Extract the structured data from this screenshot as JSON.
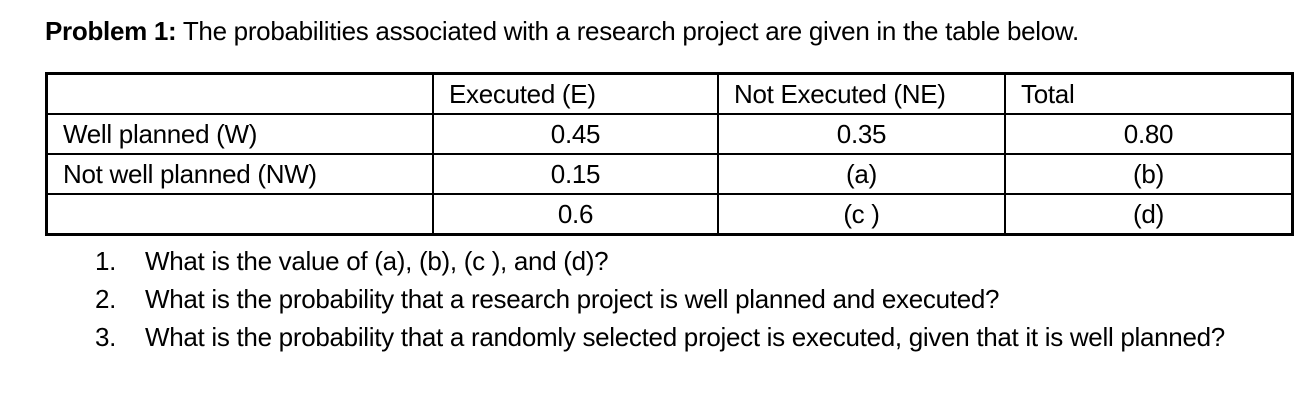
{
  "title": {
    "bold": "Problem 1:",
    "rest": " The probabilities associated with a research project are given in the table below."
  },
  "table": {
    "headers": {
      "blank": "",
      "executed": "Executed (E)",
      "not_executed": "Not Executed (NE)",
      "total": "Total"
    },
    "rows": [
      {
        "label": "Well planned (W)",
        "executed": "0.45",
        "not_executed": "0.35",
        "total": "0.80"
      },
      {
        "label": "Not well planned (NW)",
        "executed": "0.15",
        "not_executed": "(a)",
        "total": "(b)"
      },
      {
        "label": "",
        "executed": "0.6",
        "not_executed": "(c )",
        "total": "(d)"
      }
    ]
  },
  "questions": [
    {
      "number": "1.",
      "text": "What is the value of (a), (b), (c ), and (d)?"
    },
    {
      "number": "2.",
      "text": "What is the probability that a research project is well planned and executed?"
    },
    {
      "number": "3.",
      "text": "What is the probability that a randomly selected project is executed, given that it is well planned?"
    }
  ],
  "colors": {
    "text": "#000000",
    "background": "#ffffff",
    "border": "#000000"
  }
}
